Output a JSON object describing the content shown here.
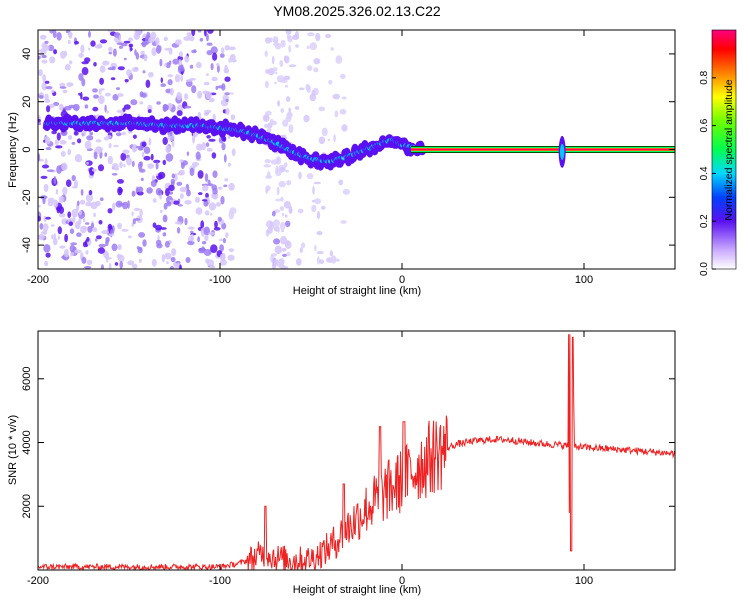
{
  "title": "YM08.2025.326.02.13.C22",
  "chart_data": [
    {
      "type": "heatmap",
      "name": "spectrogram",
      "xlabel": "Height of straight line (km)",
      "ylabel": "Frequency (Hz)",
      "xlim": [
        -200,
        150
      ],
      "ylim": [
        -50,
        50
      ],
      "xticks": [
        "-200",
        "-100",
        "0",
        "100"
      ],
      "yticks": [
        "40",
        "20",
        "0",
        "-20",
        "-40"
      ],
      "colorbar": {
        "label": "Normalized spectral amplitude",
        "ticks": [
          "0.0",
          "0.2",
          "0.4",
          "0.6",
          "0.8"
        ],
        "range": [
          0,
          1
        ]
      },
      "ridge": {
        "x": [
          -195,
          -170,
          -150,
          -130,
          -110,
          -100,
          -90,
          -80,
          -70,
          -60,
          -50,
          -40,
          -30,
          -20,
          -10,
          -5,
          0,
          10,
          50,
          85,
          88,
          92,
          150
        ],
        "y": [
          11,
          11,
          11,
          10,
          10,
          9,
          8,
          6,
          3,
          -1,
          -4,
          -5,
          -3,
          0,
          3,
          4,
          2,
          0,
          0,
          0,
          0,
          0,
          0
        ]
      },
      "noise_region": {
        "x_from": -200,
        "x_to": -100
      },
      "transient_x": 88
    },
    {
      "type": "line",
      "name": "snr",
      "xlabel": "Height of straight line (km)",
      "ylabel": "SNR (10 * v/v)",
      "xlim": [
        -200,
        150
      ],
      "ylim": [
        0,
        7500
      ],
      "xticks": [
        "-200",
        "-100",
        "0",
        "100"
      ],
      "yticks": [
        "6000",
        "4000",
        "2000"
      ],
      "envelope": {
        "x": [
          -200,
          -150,
          -100,
          -90,
          -80,
          -75,
          -70,
          -60,
          -50,
          -40,
          -30,
          -20,
          -10,
          0,
          10,
          20,
          30,
          40,
          50,
          60,
          70,
          80,
          88,
          100,
          120,
          150
        ],
        "y": [
          100,
          100,
          100,
          200,
          400,
          600,
          400,
          300,
          350,
          700,
          1300,
          1900,
          2400,
          2800,
          3300,
          3700,
          3950,
          4050,
          4100,
          4080,
          4000,
          3950,
          3920,
          3850,
          3780,
          3650
        ]
      },
      "spikes": [
        {
          "x": -75,
          "y": 2000
        },
        {
          "x": -32,
          "y": 2700
        },
        {
          "x": -12,
          "y": 4500
        },
        {
          "x": 1,
          "y": 4650
        },
        {
          "x": 92,
          "y": 7400
        },
        {
          "x": 94,
          "y": 7300
        },
        {
          "x": 93,
          "y": 600
        }
      ]
    }
  ]
}
